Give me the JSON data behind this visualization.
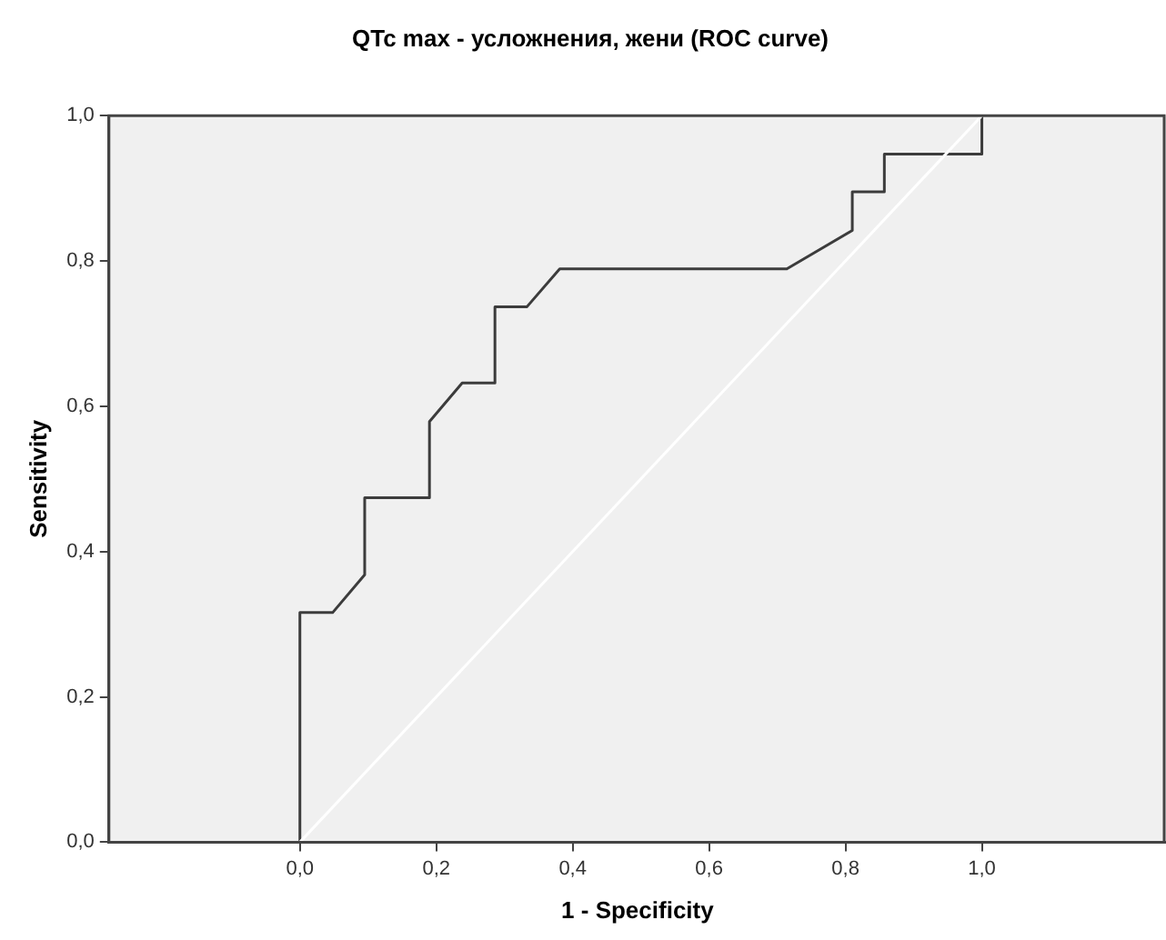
{
  "chart_data": {
    "type": "line",
    "title": "QTc max - усложнения, жени (ROC curve)",
    "xlabel": "1 - Specificity",
    "ylabel": "Sensitivity",
    "xlim": [
      -0.28,
      1.27
    ],
    "ylim": [
      0,
      1
    ],
    "xticks": [
      {
        "value": 0,
        "label": "0,0"
      },
      {
        "value": 0.2,
        "label": "0,2"
      },
      {
        "value": 0.4,
        "label": "0,4"
      },
      {
        "value": 0.6,
        "label": "0,6"
      },
      {
        "value": 0.8,
        "label": "0,8"
      },
      {
        "value": 1,
        "label": "1,0"
      }
    ],
    "yticks": [
      {
        "value": 0,
        "label": "0,0"
      },
      {
        "value": 0.2,
        "label": "0,2"
      },
      {
        "value": 0.4,
        "label": "0,4"
      },
      {
        "value": 0.6,
        "label": "0,6"
      },
      {
        "value": 0.8,
        "label": "0,8"
      },
      {
        "value": 1,
        "label": "1,0"
      }
    ],
    "grid": false,
    "legend": false,
    "marker": "none",
    "line_style": "solid",
    "series": [
      {
        "color": "#ffffff",
        "x": [
          0,
          1
        ],
        "values": [
          0,
          1
        ]
      },
      {
        "color": "#3c3c3c",
        "x": [
          0,
          0,
          0.048,
          0.095,
          0.095,
          0.19,
          0.19,
          0.238,
          0.286,
          0.286,
          0.333,
          0.381,
          0.714,
          0.81,
          0.81,
          0.857,
          0.857,
          1,
          1
        ],
        "values": [
          0,
          0.316,
          0.316,
          0.368,
          0.474,
          0.474,
          0.579,
          0.632,
          0.632,
          0.737,
          0.737,
          0.789,
          0.789,
          0.842,
          0.895,
          0.895,
          0.947,
          0.947,
          1
        ]
      }
    ]
  }
}
